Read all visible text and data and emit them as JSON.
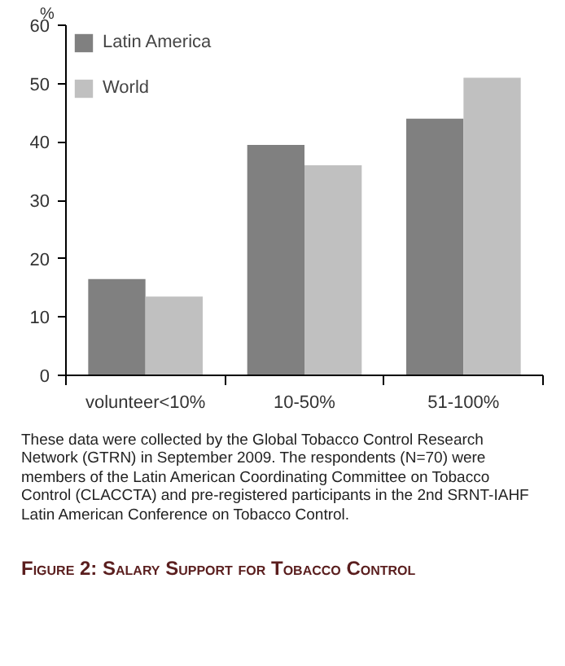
{
  "chart_data": {
    "type": "bar",
    "title": "Figure 2: Salary Support for Tobacco Control",
    "ylabel": "%",
    "categories": [
      "volunteer<10%",
      "10-50%",
      "51-100%"
    ],
    "series": [
      {
        "name": "Latin America",
        "color": "#808080",
        "values": [
          16.5,
          39.5,
          44
        ]
      },
      {
        "name": "World",
        "color": "#c0c0c0",
        "values": [
          13.5,
          36,
          51
        ]
      }
    ],
    "ylim": [
      0,
      60
    ],
    "yticks": [
      0,
      10,
      20,
      30,
      40,
      50,
      60
    ],
    "grid": false,
    "legend": "top left",
    "annotations": [
      "These data were collected by the Global Tobacco Control Research Network (GTRN) in September 2009. The respondents (N=70) were members of the Latin American Coordinating Committee on Tobacco Control (CLACCTA) and pre-registered participants in the 2nd SRNT-IAHF Latin American Conference on Tobacco Control."
    ]
  }
}
